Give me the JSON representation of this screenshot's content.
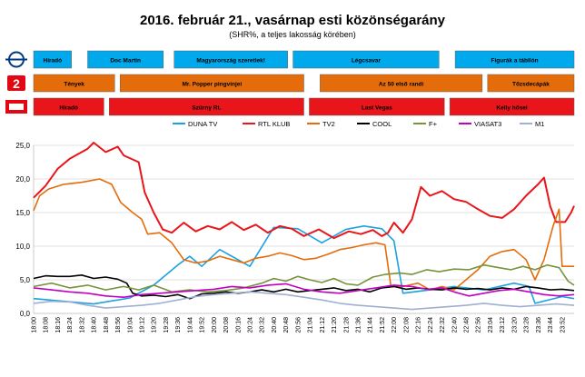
{
  "title": "2016. február 21., vasárnap esti közönségarány",
  "subtitle": "(SHR%, a teljes lakosság körében)",
  "colors": {
    "duna": "#1ba1e2",
    "rtl": "#e8161b",
    "tv2": "#e46c0a",
    "cool": "#000000",
    "fplus": "#77933c",
    "viasat3": "#c000c0",
    "m1": "#9fb0d0",
    "band_duna": "#00a8ec",
    "band_tv2": "#e46c0a",
    "band_rtl": "#e8161b"
  },
  "program_bands": [
    {
      "channel": "duna",
      "logo": "duna-logo",
      "segments": [
        {
          "start": 0,
          "end": 7,
          "label": "Híradó"
        },
        {
          "start": 10,
          "end": 24,
          "label": "Doc Martin"
        },
        {
          "start": 26,
          "end": 47,
          "label": "Magyarország szeretlek!"
        },
        {
          "start": 48,
          "end": 75,
          "label": "Légcsavar"
        },
        {
          "start": 78,
          "end": 100,
          "label": "Figurák a tábllón"
        }
      ]
    },
    {
      "channel": "tv2",
      "logo": "tv2-logo",
      "segments": [
        {
          "start": 0,
          "end": 15,
          "label": "Tények"
        },
        {
          "start": 16,
          "end": 50,
          "label": "Mr. Popper pingvinjei"
        },
        {
          "start": 53,
          "end": 83,
          "label": "Az 50 első randi"
        },
        {
          "start": 84,
          "end": 100,
          "label": "Tőzsdecápák"
        }
      ]
    },
    {
      "channel": "rtl",
      "logo": "rtl-logo",
      "segments": [
        {
          "start": 0,
          "end": 13,
          "label": "Híradó"
        },
        {
          "start": 14,
          "end": 50,
          "label": "Szürny Rt."
        },
        {
          "start": 51,
          "end": 76,
          "label": "Last Vegas"
        },
        {
          "start": 77,
          "end": 100,
          "label": "Kelly hősei"
        }
      ]
    }
  ],
  "legend": [
    "DUNA TV",
    "RTL KLUB",
    "TV2",
    "COOL",
    "F+",
    "VIASAT3",
    "M1"
  ],
  "chart_data": {
    "type": "line",
    "ylim": [
      0,
      25
    ],
    "yticks": [
      "0,0",
      "5,0",
      "10,0",
      "15,0",
      "20,0",
      "25,0"
    ],
    "ytick_values": [
      0,
      5,
      10,
      15,
      20,
      25
    ],
    "x_tick_labels": [
      "18:00",
      "18:08",
      "18:16",
      "18:24",
      "18:32",
      "18:40",
      "18:48",
      "18:56",
      "19:04",
      "19:12",
      "19:20",
      "19:28",
      "19:36",
      "19:44",
      "19:52",
      "20:00",
      "20:08",
      "20:16",
      "20:24",
      "20:32",
      "20:40",
      "20:48",
      "20:56",
      "21:04",
      "21:12",
      "21:20",
      "21:28",
      "21:36",
      "21:44",
      "21:52",
      "22:00",
      "22:08",
      "22:16",
      "22:24",
      "22:32",
      "22:40",
      "22:48",
      "22:56",
      "23:04",
      "23:12",
      "23:20",
      "23:28",
      "23:36",
      "23:44",
      "23:52"
    ],
    "x_start_minute": 0,
    "x_end_minute": 360,
    "x_tick_step_minutes": 8,
    "series": [
      {
        "name": "DUNA TV",
        "color": "#1ba1e2",
        "points": [
          [
            0,
            2.2
          ],
          [
            40,
            1.4
          ],
          [
            64,
            2.3
          ],
          [
            80,
            4.2
          ],
          [
            96,
            7.2
          ],
          [
            104,
            8.5
          ],
          [
            112,
            7
          ],
          [
            124,
            9.5
          ],
          [
            144,
            7
          ],
          [
            160,
            12.8
          ],
          [
            176,
            12.6
          ],
          [
            192,
            10.5
          ],
          [
            208,
            12.5
          ],
          [
            220,
            13
          ],
          [
            232,
            12.6
          ],
          [
            240,
            10.8
          ],
          [
            246,
            3
          ],
          [
            264,
            3.5
          ],
          [
            280,
            4
          ],
          [
            300,
            3.5
          ],
          [
            320,
            4.5
          ],
          [
            330,
            4
          ],
          [
            334,
            1.5
          ],
          [
            352,
            2.5
          ],
          [
            360,
            2.2
          ]
        ]
      },
      {
        "name": "RTL KLUB",
        "color": "#e8161b",
        "points": [
          [
            0,
            17.2
          ],
          [
            8,
            19
          ],
          [
            16,
            21.5
          ],
          [
            24,
            23
          ],
          [
            36,
            24.5
          ],
          [
            40,
            25.4
          ],
          [
            48,
            24
          ],
          [
            56,
            24.8
          ],
          [
            60,
            23.5
          ],
          [
            70,
            22.5
          ],
          [
            74,
            18
          ],
          [
            80,
            15
          ],
          [
            86,
            12.5
          ],
          [
            92,
            12
          ],
          [
            100,
            13.5
          ],
          [
            108,
            12.2
          ],
          [
            116,
            13
          ],
          [
            124,
            12.5
          ],
          [
            132,
            13.6
          ],
          [
            140,
            12.4
          ],
          [
            148,
            13.2
          ],
          [
            156,
            12
          ],
          [
            164,
            13
          ],
          [
            172,
            12.6
          ],
          [
            180,
            11.5
          ],
          [
            190,
            12.5
          ],
          [
            200,
            11.2
          ],
          [
            210,
            12.2
          ],
          [
            218,
            11.8
          ],
          [
            226,
            12.4
          ],
          [
            232,
            11.5
          ],
          [
            236,
            12
          ],
          [
            240,
            13.5
          ],
          [
            246,
            12
          ],
          [
            252,
            14
          ],
          [
            258,
            18.8
          ],
          [
            264,
            17.5
          ],
          [
            272,
            18.2
          ],
          [
            280,
            17
          ],
          [
            288,
            16.6
          ],
          [
            296,
            15.5
          ],
          [
            304,
            14.5
          ],
          [
            312,
            14.2
          ],
          [
            320,
            15.5
          ],
          [
            328,
            17.5
          ],
          [
            336,
            19.2
          ],
          [
            340,
            20.2
          ],
          [
            344,
            16
          ],
          [
            348,
            13.6
          ],
          [
            354,
            13.6
          ],
          [
            358,
            15
          ],
          [
            360,
            16
          ]
        ]
      },
      {
        "name": "TV2",
        "color": "#e46c0a",
        "points": [
          [
            0,
            15.3
          ],
          [
            4,
            17.5
          ],
          [
            10,
            18.5
          ],
          [
            20,
            19.2
          ],
          [
            32,
            19.5
          ],
          [
            44,
            20
          ],
          [
            52,
            19.2
          ],
          [
            58,
            16.5
          ],
          [
            66,
            15
          ],
          [
            72,
            14
          ],
          [
            76,
            11.8
          ],
          [
            84,
            12
          ],
          [
            92,
            10.5
          ],
          [
            100,
            8
          ],
          [
            108,
            7.5
          ],
          [
            116,
            7.8
          ],
          [
            124,
            8.5
          ],
          [
            132,
            8
          ],
          [
            140,
            7.5
          ],
          [
            148,
            8.2
          ],
          [
            156,
            8.5
          ],
          [
            164,
            9
          ],
          [
            172,
            8.6
          ],
          [
            180,
            8
          ],
          [
            188,
            8.2
          ],
          [
            196,
            8.8
          ],
          [
            204,
            9.5
          ],
          [
            212,
            9.8
          ],
          [
            220,
            10.2
          ],
          [
            228,
            10.5
          ],
          [
            234,
            10.2
          ],
          [
            238,
            4
          ],
          [
            246,
            4
          ],
          [
            256,
            4.5
          ],
          [
            264,
            3.5
          ],
          [
            272,
            4
          ],
          [
            280,
            3.5
          ],
          [
            288,
            5
          ],
          [
            296,
            6.5
          ],
          [
            304,
            8.5
          ],
          [
            312,
            9.2
          ],
          [
            320,
            9.5
          ],
          [
            328,
            8
          ],
          [
            334,
            5
          ],
          [
            340,
            8
          ],
          [
            346,
            13
          ],
          [
            350,
            15.5
          ],
          [
            352,
            7
          ],
          [
            360,
            7
          ]
        ]
      },
      {
        "name": "COOL",
        "color": "#000000",
        "points": [
          [
            0,
            5.2
          ],
          [
            8,
            5.6
          ],
          [
            16,
            5.5
          ],
          [
            24,
            5.5
          ],
          [
            32,
            5.7
          ],
          [
            40,
            5.2
          ],
          [
            48,
            5.4
          ],
          [
            56,
            5.1
          ],
          [
            62,
            4.5
          ],
          [
            66,
            3
          ],
          [
            72,
            2.6
          ],
          [
            80,
            2.7
          ],
          [
            88,
            2.5
          ],
          [
            96,
            2.8
          ],
          [
            104,
            2.2
          ],
          [
            112,
            2.9
          ],
          [
            120,
            3
          ],
          [
            128,
            3.2
          ],
          [
            136,
            3
          ],
          [
            144,
            3.2
          ],
          [
            152,
            3.5
          ],
          [
            160,
            3.2
          ],
          [
            168,
            3.6
          ],
          [
            176,
            3.2
          ],
          [
            184,
            3.4
          ],
          [
            192,
            3.6
          ],
          [
            200,
            3.8
          ],
          [
            208,
            3.4
          ],
          [
            216,
            3.6
          ],
          [
            224,
            3.2
          ],
          [
            232,
            3.8
          ],
          [
            240,
            4
          ],
          [
            248,
            3.6
          ],
          [
            256,
            3.8
          ],
          [
            264,
            3.6
          ],
          [
            272,
            3.5
          ],
          [
            280,
            3.8
          ],
          [
            288,
            3.6
          ],
          [
            296,
            3.7
          ],
          [
            304,
            3.5
          ],
          [
            312,
            3.8
          ],
          [
            320,
            3.6
          ],
          [
            328,
            4
          ],
          [
            336,
            3.8
          ],
          [
            344,
            3.5
          ],
          [
            352,
            3.6
          ],
          [
            360,
            3.4
          ]
        ]
      },
      {
        "name": "F+",
        "color": "#77933c",
        "points": [
          [
            0,
            4
          ],
          [
            12,
            4.5
          ],
          [
            24,
            3.8
          ],
          [
            36,
            4.2
          ],
          [
            48,
            3.5
          ],
          [
            60,
            4
          ],
          [
            70,
            3.5
          ],
          [
            80,
            4.2
          ],
          [
            92,
            3.2
          ],
          [
            104,
            3.5
          ],
          [
            116,
            3.2
          ],
          [
            128,
            3.4
          ],
          [
            140,
            3.8
          ],
          [
            152,
            4.5
          ],
          [
            160,
            5.2
          ],
          [
            168,
            4.8
          ],
          [
            176,
            5.5
          ],
          [
            184,
            5
          ],
          [
            192,
            4.6
          ],
          [
            200,
            5.2
          ],
          [
            208,
            4.4
          ],
          [
            216,
            4.2
          ],
          [
            226,
            5.4
          ],
          [
            234,
            5.8
          ],
          [
            244,
            6
          ],
          [
            252,
            5.8
          ],
          [
            262,
            6.5
          ],
          [
            270,
            6.2
          ],
          [
            280,
            6.6
          ],
          [
            290,
            6.5
          ],
          [
            300,
            7.2
          ],
          [
            310,
            6.8
          ],
          [
            318,
            6.5
          ],
          [
            326,
            7
          ],
          [
            334,
            6.5
          ],
          [
            342,
            7.2
          ],
          [
            350,
            6.8
          ],
          [
            356,
            4.8
          ],
          [
            360,
            4.2
          ]
        ]
      },
      {
        "name": "VIASAT3",
        "color": "#c000c0",
        "points": [
          [
            0,
            3.8
          ],
          [
            12,
            3.5
          ],
          [
            24,
            3.2
          ],
          [
            36,
            3
          ],
          [
            48,
            2.6
          ],
          [
            60,
            2.4
          ],
          [
            72,
            2.8
          ],
          [
            84,
            3
          ],
          [
            96,
            3.2
          ],
          [
            108,
            3.4
          ],
          [
            120,
            3.6
          ],
          [
            132,
            4
          ],
          [
            144,
            3.8
          ],
          [
            156,
            4.2
          ],
          [
            168,
            4.4
          ],
          [
            180,
            3.6
          ],
          [
            192,
            3.2
          ],
          [
            204,
            3
          ],
          [
            216,
            3.4
          ],
          [
            228,
            3.8
          ],
          [
            240,
            4.2
          ],
          [
            252,
            4
          ],
          [
            262,
            3.6
          ],
          [
            272,
            3.8
          ],
          [
            280,
            3.2
          ],
          [
            290,
            2.6
          ],
          [
            300,
            3
          ],
          [
            310,
            3.4
          ],
          [
            320,
            3.6
          ],
          [
            330,
            3.2
          ],
          [
            340,
            2.8
          ],
          [
            350,
            2.6
          ],
          [
            360,
            2.8
          ]
        ]
      },
      {
        "name": "M1",
        "color": "#9fb0d0",
        "points": [
          [
            0,
            1.5
          ],
          [
            12,
            1.8
          ],
          [
            24,
            1.7
          ],
          [
            36,
            1.2
          ],
          [
            48,
            0.8
          ],
          [
            60,
            1
          ],
          [
            72,
            1.2
          ],
          [
            84,
            1.5
          ],
          [
            96,
            2
          ],
          [
            108,
            2.5
          ],
          [
            120,
            2.8
          ],
          [
            132,
            3
          ],
          [
            144,
            3.2
          ],
          [
            156,
            3
          ],
          [
            168,
            2.8
          ],
          [
            180,
            2.4
          ],
          [
            192,
            2
          ],
          [
            204,
            1.5
          ],
          [
            216,
            1.2
          ],
          [
            228,
            1
          ],
          [
            240,
            0.8
          ],
          [
            252,
            0.6
          ],
          [
            264,
            0.8
          ],
          [
            276,
            1
          ],
          [
            288,
            1.2
          ],
          [
            300,
            1.5
          ],
          [
            312,
            1.2
          ],
          [
            324,
            1
          ],
          [
            336,
            1.2
          ],
          [
            348,
            1.4
          ],
          [
            360,
            1.2
          ]
        ]
      }
    ]
  }
}
